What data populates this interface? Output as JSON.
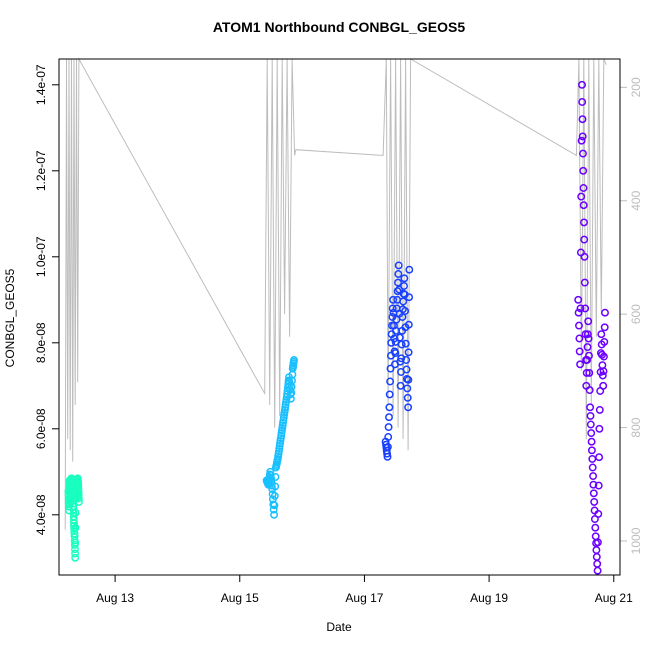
{
  "chart_data": {
    "type": "scatter",
    "title": "ATOM1 Northbound CONBGL_GEOS5",
    "xlabel": "Date",
    "ylabel": "CONBGL_GEOS5",
    "x_ticks": [
      "Aug 13",
      "Aug 15",
      "Aug 17",
      "Aug 19",
      "Aug 21"
    ],
    "y_ticks": [
      "4.0e-08",
      "6.0e-08",
      "8.0e-08",
      "1.0e-07",
      "1.2e-07",
      "1.4e-07"
    ],
    "y_right_ticks": [
      "200",
      "400",
      "600",
      "800",
      "1000"
    ],
    "xlim_days": [
      12.1,
      21.1
    ],
    "ylim": [
      2.6e-08,
      1.46e-07
    ],
    "y_right_range_inverted": [
      1060,
      150
    ],
    "grid": false,
    "colors": {
      "flight1": "#19ffc0",
      "flight2": "#19c0ff",
      "flight3": "#1940ff",
      "flight4": "#6a00ff",
      "pressure_line": "#bdbdbd"
    },
    "series": [
      {
        "color": "flight1",
        "x_range_days": [
          12.24,
          12.43
        ],
        "values": [
          [
            12.25,
            4.55e-08
          ],
          [
            12.26,
            4.1e-08
          ],
          [
            12.27,
            4.8e-08
          ],
          [
            12.28,
            4.65e-08
          ],
          [
            12.29,
            4.3e-08
          ],
          [
            12.3,
            4.85e-08
          ],
          [
            12.31,
            4.7e-08
          ],
          [
            12.32,
            4.5e-08
          ],
          [
            12.33,
            4.2e-08
          ],
          [
            12.34,
            3.8e-08
          ],
          [
            12.35,
            3.5e-08
          ],
          [
            12.36,
            3e-08
          ],
          [
            12.37,
            4.75e-08
          ],
          [
            12.38,
            4.6e-08
          ],
          [
            12.39,
            4.4e-08
          ],
          [
            12.4,
            4.85e-08
          ],
          [
            12.41,
            4.7e-08
          ],
          [
            12.42,
            4.3e-08
          ]
        ]
      },
      {
        "color": "flight2",
        "x_range_days": [
          15.42,
          15.88
        ],
        "values": [
          [
            15.43,
            4.8e-08
          ],
          [
            15.46,
            4.7e-08
          ],
          [
            15.49,
            5e-08
          ],
          [
            15.52,
            4.6e-08
          ],
          [
            15.55,
            4e-08
          ],
          [
            15.58,
            5.1e-08
          ],
          [
            15.61,
            5.3e-08
          ],
          [
            15.64,
            5.6e-08
          ],
          [
            15.67,
            5.9e-08
          ],
          [
            15.7,
            6.2e-08
          ],
          [
            15.73,
            6.5e-08
          ],
          [
            15.76,
            6.8e-08
          ],
          [
            15.79,
            7.2e-08
          ],
          [
            15.82,
            6.7e-08
          ],
          [
            15.85,
            7.4e-08
          ],
          [
            15.87,
            7.6e-08
          ]
        ]
      },
      {
        "color": "flight3",
        "x_range_days": [
          17.33,
          17.72
        ],
        "values": [
          [
            17.34,
            5.7e-08
          ],
          [
            17.37,
            5.35e-08
          ],
          [
            17.4,
            6.5e-08
          ],
          [
            17.43,
            8e-08
          ],
          [
            17.46,
            9e-08
          ],
          [
            17.49,
            7.5e-08
          ],
          [
            17.52,
            8.8e-08
          ],
          [
            17.55,
            9.8e-08
          ],
          [
            17.58,
            7e-08
          ],
          [
            17.61,
            8.6e-08
          ],
          [
            17.64,
            9.5e-08
          ],
          [
            17.67,
            7.6e-08
          ],
          [
            17.7,
            6.5e-08
          ],
          [
            17.72,
            9.7e-08
          ]
        ]
      },
      {
        "color": "flight4",
        "x_range_days": [
          20.42,
          20.92
        ],
        "values": [
          [
            20.43,
            9e-08
          ],
          [
            20.46,
            7.5e-08
          ],
          [
            20.49,
            1.4e-07
          ],
          [
            20.51,
            1.2e-07
          ],
          [
            20.53,
            1e-07
          ],
          [
            20.56,
            7e-08
          ],
          [
            20.59,
            8.5e-08
          ],
          [
            20.62,
            6.5e-08
          ],
          [
            20.65,
            5.5e-08
          ],
          [
            20.68,
            4.5e-08
          ],
          [
            20.71,
            3.5e-08
          ],
          [
            20.74,
            2.7e-08
          ],
          [
            20.77,
            6e-08
          ],
          [
            20.8,
            8.2e-08
          ],
          [
            20.83,
            7e-08
          ],
          [
            20.86,
            8.7e-08
          ]
        ]
      }
    ],
    "pressure_profile": [
      [
        12.2,
        980
      ],
      [
        12.22,
        140
      ],
      [
        12.24,
        820
      ],
      [
        12.26,
        140
      ],
      [
        12.28,
        840
      ],
      [
        12.3,
        140
      ],
      [
        12.32,
        860
      ],
      [
        12.34,
        140
      ],
      [
        12.36,
        760
      ],
      [
        12.38,
        140
      ],
      [
        12.4,
        720
      ],
      [
        12.42,
        140
      ],
      [
        15.4,
        740
      ],
      [
        15.44,
        140
      ],
      [
        15.48,
        760
      ],
      [
        15.52,
        140
      ],
      [
        15.56,
        800
      ],
      [
        15.6,
        140
      ],
      [
        15.64,
        780
      ],
      [
        15.68,
        140
      ],
      [
        15.72,
        600
      ],
      [
        15.76,
        140
      ],
      [
        15.8,
        640
      ],
      [
        15.84,
        140
      ],
      [
        15.88,
        320
      ],
      [
        15.9,
        310
      ],
      [
        17.3,
        320
      ],
      [
        17.35,
        140
      ],
      [
        17.38,
        760
      ],
      [
        17.42,
        140
      ],
      [
        17.46,
        780
      ],
      [
        17.5,
        140
      ],
      [
        17.54,
        800
      ],
      [
        17.58,
        140
      ],
      [
        17.62,
        820
      ],
      [
        17.66,
        140
      ],
      [
        17.7,
        840
      ],
      [
        17.74,
        140
      ],
      [
        20.4,
        320
      ],
      [
        20.44,
        140
      ],
      [
        20.48,
        700
      ],
      [
        20.52,
        140
      ],
      [
        20.56,
        820
      ],
      [
        20.6,
        140
      ],
      [
        20.64,
        760
      ],
      [
        20.68,
        140
      ],
      [
        20.72,
        640
      ],
      [
        20.76,
        140
      ],
      [
        20.8,
        600
      ],
      [
        20.84,
        140
      ],
      [
        20.88,
        160
      ]
    ]
  }
}
